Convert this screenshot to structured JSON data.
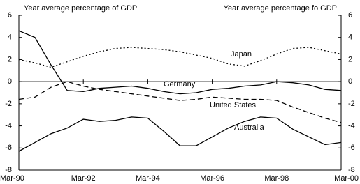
{
  "chart_data": {
    "type": "line",
    "y_axis_title": "Year average percentage of GDP",
    "y2_axis_title": "Year average percentage fo GDP",
    "categories": [
      "Mar-90",
      null,
      null,
      null,
      "Mar-92",
      null,
      null,
      null,
      "Mar-94",
      null,
      null,
      null,
      "Mar-96",
      null,
      null,
      null,
      "Mar-98",
      null,
      null,
      null,
      "Mar-00"
    ],
    "ylim": [
      -8,
      6
    ],
    "yticks": [
      6,
      4,
      2,
      0,
      -2,
      -4,
      -6,
      -8
    ],
    "y2lim": [
      -8,
      6
    ],
    "y2ticks": [
      6,
      4,
      2,
      0,
      -2,
      -4,
      -6,
      -8
    ],
    "grid": false,
    "series": [
      {
        "name": "Japan",
        "color": "#000000",
        "style": "dotted",
        "values": [
          2.0,
          1.7,
          1.3,
          1.8,
          2.3,
          2.7,
          3.0,
          3.1,
          3.0,
          2.9,
          2.7,
          2.4,
          2.1,
          1.6,
          1.4,
          1.9,
          2.5,
          3.0,
          3.1,
          2.8,
          2.5
        ]
      },
      {
        "name": "Germany",
        "color": "#000000",
        "style": "solid",
        "values": [
          4.6,
          4.0,
          1.5,
          -0.8,
          -0.9,
          -0.6,
          -0.5,
          -0.4,
          -0.6,
          -0.9,
          -1.1,
          -1.0,
          -0.7,
          -0.6,
          -0.4,
          -0.3,
          0.0,
          -0.1,
          -0.3,
          -0.7,
          -0.8
        ]
      },
      {
        "name": "United States",
        "color": "#000000",
        "style": "dashed",
        "values": [
          -1.6,
          -1.4,
          -0.5,
          0.0,
          -0.4,
          -0.7,
          -0.9,
          -1.1,
          -1.3,
          -1.5,
          -1.7,
          -1.6,
          -1.4,
          -1.5,
          -1.6,
          -1.6,
          -1.7,
          -2.3,
          -2.8,
          -3.3,
          -3.7
        ]
      },
      {
        "name": "Australia",
        "color": "#000000",
        "style": "solid",
        "values": [
          -6.3,
          -5.5,
          -4.7,
          -4.2,
          -3.4,
          -3.6,
          -3.5,
          -3.2,
          -3.3,
          -4.5,
          -5.8,
          -5.8,
          -5.0,
          -4.2,
          -3.6,
          -3.2,
          -3.3,
          -4.3,
          -5.0,
          -5.7,
          -5.5
        ]
      }
    ]
  }
}
